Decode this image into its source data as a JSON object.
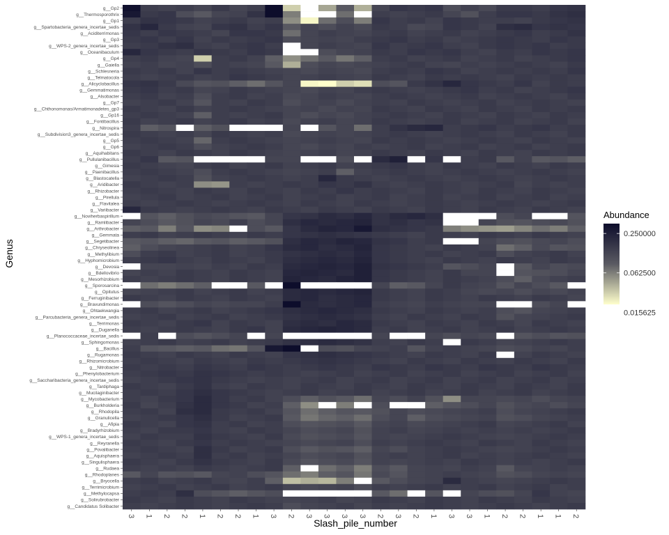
{
  "chart_data": {
    "type": "heatmap",
    "title": "",
    "xlabel": "Slash_pile_number",
    "ylabel": "Genus",
    "x_tick_labels": [
      "3",
      "1",
      "2",
      "2",
      "1",
      "2",
      "2",
      "1",
      "3",
      "2",
      "3",
      "3",
      "3",
      "3",
      "2",
      "3",
      "2",
      "1",
      "3",
      "3",
      "1",
      "2",
      "2",
      "1",
      "1",
      "2"
    ],
    "genera": [
      "g__Gp2",
      "g__Thermosporothrix",
      "g__Gp1",
      "g__Spartobacteria_genera_incertae_sedis",
      "g__Aciditerrimonas",
      "g__Gp3",
      "g__WPS-2_genera_incertae_sedis",
      "g__Oceanibaculum",
      "g__Gp4",
      "g__Gaiella",
      "g__Schlesneria",
      "g__Telmatocola",
      "g__Alicyclobacillus",
      "g__Gemmatimonas",
      "g__Alsobacter",
      "g__Gp7",
      "g__Chthonomonas/Armatimonadetes_gp3",
      "g__Gp16",
      "g__Fontibacillus",
      "g__Nitrospira",
      "g__Subdivision3_genera_incertae_sedis",
      "g__Gp5",
      "g__Gp6",
      "g__Aquihabitans",
      "g__Pullulanibacillus",
      "g__Gimesia",
      "g__Paenibacillus",
      "g__Blastocatella",
      "g__Aridibacter",
      "g__Rhizobacter",
      "g__Pirellula",
      "g__Flavitalea",
      "g__Variibacter",
      "g__Noviherbaspirillum",
      "g__Ramlibacter",
      "g__Arthrobacter",
      "g__Gemmata",
      "g__Segetibacter",
      "g__Chryseolinea",
      "g__Methylibium",
      "g__Hyphomicrobium",
      "g__Devosia",
      "g__Bdellovibrio",
      "g__Mesorhizobium",
      "g__Sporosarcina",
      "g__Opitutus",
      "g__Ferruginibacter",
      "g__Bravundimonas",
      "g__Ohtaekwangia",
      "g__Parcubacteria_genera_incertae_sedis",
      "g__Terrimonas",
      "g__Duganella",
      "g__Planococcaceae_incertae_sedis",
      "g__Sphingomonas",
      "g__Bacillus",
      "g__Rugamonas",
      "g__Rhizomicrobium",
      "g__Nitrobacter",
      "g__Phenylobacterium",
      "g__Saccharibacteria_genera_incertae_sedis",
      "g__Tardiphaga",
      "g__Mucilaginibacter",
      "g__Mycobacterium",
      "g__Burkholderia",
      "g__Rhodopila",
      "g__Granulicella",
      "g__Afipia",
      "g__Bradyrhizobium",
      "g__WPS-1_genera_incertae_sedis",
      "g__Reyranella",
      "g__Povalibacter",
      "g__Aquisphaera",
      "g__Singulisphaera",
      "g__Rudaea",
      "g__Rhodoplanes",
      "g__Bryocella",
      "g__Terrimicrobium",
      "g__Methylocapsa",
      "g__Solirubrobacter",
      "g__Candidatus Solibacter"
    ],
    "color_scale": {
      "name": "Abundance",
      "transform": "log2",
      "breaks": [
        0.25,
        0.0625,
        0.015625
      ],
      "break_labels": [
        "0.250000",
        "0.062500",
        "0.015625"
      ],
      "low_color": "#ffffcc",
      "mid_color": "#5a5a62",
      "high_color": "#0d0d2b",
      "zero_color": "#ffffff"
    },
    "grid": false,
    "legend_position": "right",
    "values_note_rows": "Approximate log2 abundance per genus (rows, top to bottom) and sample column (left to right); 'Z' means zero / below scale (white).",
    "values": [
      "-1.6,-2.8,-2.9,-2.8,-3.0,-2.7,-3.0,-2.8,-1.5,-5.0,Z,-4.5,-3.5,-4.6,-3.0,-2.6,-2.7,-2.6,-3.2,-2.9,-3.1,-2.7,-2.7,-2.8,-2.6,-2.5",
      "-1.8,-2.7,-2.6,-3.2,-3.5,-3.0,-2.9,-2.5,-1.0,-4.0,Z,Z,-3.8,Z,-2.8,-2.9,-2.8,-2.7,-3.0,-3.3,-2.8,-2.6,-2.6,-2.7,-2.5,-2.4",
      "-2.8,-2.5,-2.6,-2.7,-2.9,-2.8,-2.7,-2.9,-2.8,-4.2,-5.5,-3.8,-3.2,-4.0,-2.6,-2.8,-2.7,-2.9,-2.6,-2.7,-2.8,-2.8,-2.9,-2.7,-2.6,-2.5",
      "-2.5,-2.2,-2.7,-2.9,-3.0,-2.6,-2.5,-2.8,-2.6,-3.5,-3.0,-3.2,-2.9,-3.1,-2.7,-2.8,-3.1,-3.0,-2.6,-2.7,-2.9,-2.4,-2.3,-2.6,-2.5,-2.6",
      "-2.6,-2.8,-2.6,-2.7,-2.8,-3.0,-2.6,-2.6,-2.7,-3.8,-3.0,-2.8,-2.9,-3.0,-2.8,-2.7,-2.9,-2.8,-2.7,-2.9,-2.8,-2.7,-2.6,-2.8,-2.7,-2.5",
      "-2.7,-2.6,-2.8,-2.6,-2.9,-2.7,-2.8,-2.7,-2.6,-3.2,-3.0,-2.9,-3.0,-2.8,-2.7,-2.6,-2.8,-2.7,-2.9,-2.8,-2.7,-2.6,-2.7,-2.8,-2.6,-2.7",
      "-2.8,-2.7,-2.5,-2.4,-2.8,-2.9,-2.7,-2.6,-2.8,Z,-3.0,-2.8,-2.9,-3.0,-2.6,-2.8,-2.7,-2.6,-2.8,-2.9,-2.7,-2.6,-2.7,-2.6,-2.8,-2.7",
      "-2.2,-2.6,-2.7,-2.8,-2.6,-2.7,-2.8,-2.6,-2.7,Z,Z,-3.2,-3.0,-2.9,-2.7,-2.8,-2.6,-2.7,-2.6,-2.8,-2.9,-2.7,-2.8,-2.6,-2.7,-2.6",
      "-2.8,-2.7,-2.9,-3.0,-5.0,-2.8,-2.7,-2.9,-3.6,-4.2,-3.8,-3.5,-3.9,-3.6,-2.8,-2.7,-2.9,-2.8,-2.7,-2.9,-2.8,-2.7,-2.9,-2.8,-2.7,-2.6",
      "-2.9,-2.8,-3.0,-2.9,-3.2,-2.8,-2.9,-3.0,-3.5,-4.6,-3.2,-3.0,-3.1,-3.0,-2.9,-2.8,-2.7,-2.9,-3.0,-2.8,-2.9,-2.8,-2.7,-2.8,-2.9,-2.7",
      "-2.7,-2.8,-2.7,-2.9,-2.6,-2.8,-2.7,-2.8,-2.9,-3.0,-3.1,-2.9,-3.0,-3.1,-2.8,-2.7,-2.8,-2.6,-2.7,-2.9,-2.8,-2.7,-2.8,-2.7,-2.8,-2.6",
      "-2.8,-2.9,-2.8,-2.7,-2.9,-2.8,-2.6,-2.7,-2.8,-3.0,-2.9,-2.8,-2.9,-3.0,-2.7,-2.8,-2.9,-2.7,-2.8,-2.7,-2.8,-2.9,-2.7,-2.8,-2.7,-2.8",
      "-2.6,-2.5,-2.7,-3.1,-3.4,-3.3,-3.6,-3.8,-3.4,-3.0,-5.5,-5.6,-5.0,-5.2,-3.2,-3.4,-2.7,-2.5,-2.2,-2.6,-2.7,-2.8,-2.6,-2.9,-2.7,-2.8",
      "-2.7,-2.6,-2.8,-2.7,-3.0,-2.9,-2.7,-2.8,-2.9,-3.0,-3.1,-2.9,-3.0,-2.8,-2.7,-2.8,-2.9,-2.8,-2.7,-2.6,-2.8,-2.7,-2.9,-2.8,-2.7,-2.6",
      "-2.8,-2.7,-2.9,-2.8,-3.2,-2.8,-2.7,-2.9,-2.8,-3.1,-3.0,-2.8,-2.9,-3.0,-2.8,-2.7,-2.8,-2.9,-2.8,-2.7,-2.9,-2.8,-2.7,-2.8,-2.9,-2.7",
      "-2.9,-2.8,-2.7,-2.9,-3.4,-2.8,-2.9,-2.7,-2.8,-3.2,-3.0,-2.9,-3.1,-2.9,-2.8,-2.9,-2.7,-2.8,-2.9,-2.8,-2.7,-2.9,-2.8,-2.7,-2.8,-2.9",
      "-2.7,-2.8,-2.9,-2.7,-2.9,-2.8,-2.7,-2.8,-2.9,-3.0,-2.9,-3.1,-2.9,-3.0,-2.7,-2.8,-2.9,-2.7,-2.8,-2.9,-2.7,-2.8,-2.9,-2.7,-2.8,-2.7",
      "-2.8,-2.7,-2.8,-2.9,-3.6,-2.8,-2.9,-2.8,-2.7,-3.0,-3.2,-3.0,-3.1,-2.9,-2.8,-2.7,-2.8,-2.9,-2.7,-2.8,-2.9,-2.7,-2.8,-2.9,-2.7,-2.8",
      "-2.7,-2.9,-2.8,-2.7,-2.9,-2.8,-2.7,-2.9,-2.8,-3.1,-2.9,-2.8,-3.0,-2.9,-2.7,-2.8,-2.9,-2.8,-2.7,-2.9,-2.8,-2.7,-2.9,-2.8,-2.7,-2.9",
      "-2.8,-3.6,-3.4,Z,-3.6,-3.3,Z,Z,Z,-3.0,Z,-3.4,-3.0,-3.8,-2.8,-2.5,-2.3,-2.2,-2.8,-2.7,-2.6,-2.8,-2.7,-2.6,-2.8,-2.7",
      "-2.7,-2.8,-2.9,-2.8,-3.0,-2.7,-2.8,-2.9,-2.8,-3.1,-3.0,-2.9,-3.0,-2.9,-2.8,-2.7,-2.8,-2.9,-2.8,-2.7,-2.8,-2.9,-2.7,-2.8,-2.9,-2.7",
      "-2.8,-2.7,-2.8,-2.9,-3.7,-2.8,-2.7,-2.8,-2.9,-3.0,-2.9,-2.8,-2.9,-3.0,-2.7,-2.8,-2.7,-2.8,-2.9,-2.8,-2.7,-2.8,-2.9,-2.7,-2.8,-2.9",
      "-2.9,-2.8,-2.7,-2.8,-3.2,-2.9,-2.8,-2.7,-2.8,-3.0,-3.1,-2.9,-3.0,-2.8,-2.9,-2.8,-2.7,-2.9,-2.8,-2.7,-2.9,-2.8,-2.7,-2.9,-2.8,-2.7",
      "-2.7,-2.8,-2.9,-2.7,-2.8,-2.9,-2.7,-2.8,-2.9,-3.0,-2.9,-2.8,-3.0,-2.9,-2.7,-2.8,-2.9,-2.7,-2.8,-2.9,-2.7,-2.8,-2.9,-2.7,-2.8,-2.7",
      "-2.8,-2.6,-3.5,-3.4,Z,Z,Z,Z,-3.0,-3.0,Z,Z,-3.2,Z,-2.3,-2.0,Z,-2.6,Z,-2.8,-2.7,-3.5,-2.9,-3.5,-3.4,-3.6",
      "-2.7,-2.8,-2.9,-3.0,-2.8,-2.7,-2.9,-2.8,-2.7,-2.9,-2.8,-2.7,-2.9,-2.8,-2.7,-2.6,-2.8,-2.9,-2.7,-2.8,-2.9,-2.7,-2.8,-2.9,-2.7,-2.8",
      "-2.8,-2.7,-2.8,-2.9,-3.2,-2.8,-2.7,-2.8,-2.9,-3.0,-2.9,-2.8,-3.6,-2.9,-2.8,-2.7,-2.8,-2.9,-2.8,-2.7,-2.8,-2.9,-2.8,-2.7,-2.8,-2.9",
      "-2.9,-2.8,-2.7,-2.8,-3.3,-2.9,-2.8,-2.7,-2.8,-2.9,-2.8,-2.2,-2.7,-2.8,-2.9,-2.8,-2.7,-2.8,-2.9,-2.8,-2.7,-2.8,-2.9,-2.8,-2.7,-2.8",
      "-2.7,-2.8,-2.9,-2.8,-4.2,-4.3,-2.8,-2.9,-2.8,-2.7,-2.8,-2.6,-2.7,-2.5,-2.8,-2.9,-2.8,-2.7,-2.8,-2.9,-2.8,-2.7,-3.0,-2.8,-2.9,-2.8",
      "-2.8,-2.7,-2.8,-2.9,-2.7,-2.8,-2.9,-2.7,-2.8,-2.9,-2.7,-2.8,-2.6,-2.8,-2.7,-2.8,-2.9,-2.7,-2.8,-2.9,-2.7,-2.8,-2.9,-2.7,-2.8,-2.9",
      "-2.9,-2.8,-2.7,-2.9,-2.8,-2.7,-2.9,-2.8,-2.7,-2.9,-2.8,-2.7,-2.9,-2.8,-2.7,-2.9,-2.8,-2.7,-2.9,-2.8,-2.7,-2.9,-2.8,-2.7,-2.9,-2.8",
      "-2.8,-2.9,-2.8,-2.7,-2.8,-2.9,-2.8,-2.7,-2.8,-2.9,-2.7,-2.8,-2.9,-2.7,-2.8,-2.9,-2.8,-2.7,-2.8,-2.9,-2.8,-2.7,-2.8,-2.9,-2.8,-2.7",
      "-2.2,-2.7,-2.8,-2.9,-2.8,-2.7,-2.8,-2.9,-2.7,-2.8,-2.9,-2.7,-2.8,-2.9,-2.7,-2.8,-2.9,-2.7,-2.8,-2.9,-2.7,-2.8,-2.9,-2.7,-2.8,-2.9",
      "Z,-3.4,-3.6,-3.3,-3.1,-3.2,-3.4,-3.5,-3.0,-2.6,-2.5,-2.3,-2.4,-2.2,-2.5,-2.3,-2.2,-2.4,Z,Z,Z,-3.2,-3.0,Z,Z,-3.4",
      "-3.0,-3.2,-3.5,-3.3,-3.0,-3.1,-2.8,-3.2,-3.0,-2.4,-2.2,-2.3,-2.2,-2.1,-2.5,-2.4,-2.6,-2.5,Z,Z,-3.0,-3.3,-3.4,-3.2,-3.1,-3.3",
      "-3.6,-3.5,-4.0,-3.4,-4.2,-4.1,Z,-3.2,-3.5,-2.6,-2.3,-2.1,-2.2,-1.8,-2.4,-2.5,-2.6,-2.7,-4.0,-4.2,-4.3,-4.4,-4.1,-3.8,-4.0,-3.6",
      "-2.8,-2.7,-2.9,-2.8,-2.7,-2.8,-2.9,-2.7,-2.8,-2.6,-2.5,-2.4,-2.5,-2.6,-2.7,-2.8,-2.9,-2.7,-2.8,-2.9,-2.7,-2.8,-2.9,-2.7,-2.8,-2.9",
      "-3.5,-3.4,-3.6,-3.7,-3.5,-3.4,-3.6,-3.5,-3.3,-2.4,-2.2,-2.3,-2.1,-2.2,-2.5,-2.6,-2.8,-2.7,Z,Z,-3.0,-3.2,-3.3,-3.1,-3.0,-3.2",
      "-3.6,-3.2,-3.0,-2.9,-2.8,-2.7,-2.9,-2.8,-2.6,-2.3,-2.2,-2.4,-2.3,-2.1,-2.6,-2.7,-2.8,-2.9,-2.7,-2.8,-2.9,-3.8,-3.6,-3.1,-3.4,-3.3",
      "-3.2,-2.8,-2.7,-2.9,-2.8,-2.7,-2.9,-2.8,-2.7,-2.5,-2.4,-2.3,-2.4,-2.2,-2.6,-2.7,-2.8,-2.7,-2.9,-2.8,-2.7,-3.2,-2.9,-2.8,-2.7,-2.9",
      "-2.8,-2.7,-2.6,-2.8,-2.9,-2.7,-2.8,-2.9,-2.7,-2.4,-2.3,-2.2,-2.3,-2.1,-2.6,-2.7,-2.8,-2.9,-2.7,-2.8,-2.9,-2.7,-2.8,-2.9,-2.7,-2.8",
      "Z,-3.0,-3.0,-2.9,-3.0,-2.8,-2.9,-2.7,-2.8,-2.3,-2.2,-2.1,-2.2,-2.0,-2.5,-2.6,-2.7,-2.8,-3.4,-3.2,-3.0,Z,-3.5,-3.0,-3.2,-3.1",
      "-3.0,-2.8,-2.9,-2.7,-2.8,-2.9,-2.7,-2.8,-2.9,-2.2,-2.1,-2.2,-2.3,-2.0,-2.6,-2.7,-2.8,-2.9,-2.7,-3.0,-3.0,Z,-3.4,-3.3,-3.2,-3.0",
      "-2.8,-2.9,-2.8,-2.7,-2.8,-2.9,-2.7,-2.8,-2.9,-2.1,-2.2,-2.3,-2.1,-2.0,-2.6,-2.7,-2.8,-2.9,-2.7,-2.8,-2.9,-3.2,-3.6,-3.1,-2.9,-2.8",
      "Z,-3.8,-4.0,-3.8,-3.6,Z,Z,-3.5,Z,-1.5,Z,Z,Z,Z,-3.0,-3.6,-3.5,-3.0,-2.7,-2.9,-3.0,-3.4,-3.0,-3.2,-3.5,Z",
      "-3.0,-2.9,-2.8,-2.7,-2.9,-2.8,-2.7,-2.9,-2.8,-2.3,-2.2,-2.3,-2.2,-2.1,-2.7,-2.8,-2.9,-2.7,-2.8,-3.0,-3.1,-3.0,-3.2,-3.0,-3.1,-2.9",
      "-2.7,-2.8,-2.9,-2.7,-2.8,-2.9,-2.7,-2.8,-2.9,-2.3,-2.2,-2.4,-2.3,-2.2,-2.7,-2.8,-2.9,-2.7,-2.8,-2.9,-2.7,-2.8,-2.9,-2.7,-2.8,-3.0",
      "Z,-3.2,-3.4,-3.2,-3.0,-3.1,-3.0,-3.0,-2.8,-1.5,-2.3,-2.4,-2.3,-2.2,-2.8,-2.9,-3.0,-2.8,-2.9,-3.0,-3.0,Z,Z,-3.2,-3.0,Z",
      "-2.8,-2.7,-2.9,-2.8,-2.7,-2.9,-2.8,-2.7,-2.6,-2.4,-2.3,-2.2,-2.3,-2.4,-2.7,-2.8,-2.9,-2.7,-2.8,-2.9,-2.8,-3.2,-3.4,-3.0,-2.9,-2.8",
      "-2.9,-2.8,-2.7,-2.9,-2.8,-2.7,-2.9,-2.8,-2.7,-2.5,-2.4,-2.3,-2.4,-2.5,-2.8,-2.9,-2.7,-2.8,-2.9,-2.7,-2.8,-3.3,-3.0,-2.9,-2.8,-2.7",
      "-2.7,-2.8,-2.9,-2.7,-2.6,-2.9,-2.7,-2.8,-2.9,-2.4,-2.3,-2.4,-2.2,-2.3,-2.7,-2.8,-2.9,-2.7,-2.8,-2.9,-2.7,-2.8,-3.0,-2.7,-2.8,-2.9",
      "-2.8,-2.9,-2.8,-2.7,-2.8,-2.9,-2.7,-2.6,-2.9,-2.3,-2.2,-2.1,-2.2,-2.3,-2.8,-2.7,-2.9,-2.8,-2.7,-2.9,-2.8,-2.7,-2.9,-2.8,-2.7,-2.8",
      "Z,-2.8,Z,-3.2,-3.4,-3.2,-3.0,Z,-3.0,Z,Z,Z,Z,Z,-3.0,Z,Z,-3.0,-3.2,-3.0,-3.1,Z,-3.4,-3.2,-3.4,-3.3",
      "-2.9,-2.8,-2.7,-2.9,-2.8,-2.7,-2.9,-2.8,-2.7,-2.5,-2.4,-2.3,-2.4,-2.5,-2.8,-2.9,-2.7,-2.8,Z,-2.7,-2.8,-3.0,-2.9,-2.8,-2.7,-2.8",
      "-2.8,-3.4,-3.5,-3.6,-3.5,-3.8,-3.9,-3.4,-1.8,-1.5,Z,-3.2,-3.3,-3.0,-2.9,-2.8,-3.4,-2.9,-2.8,-2.9,-3.0,-3.2,-3.1,-2.9,-3.0,-2.8",
      "-2.7,-2.8,-2.9,-2.7,-2.8,-2.9,-2.7,-2.8,-2.9,-2.6,-2.5,-2.4,-2.5,-2.6,-2.7,-2.8,-2.9,-2.7,-2.8,-2.9,-2.7,Z,-2.9,-2.7,-2.8,-2.9",
      "-2.8,-2.7,-2.8,-2.9,-2.7,-2.8,-2.9,-2.7,-2.8,-2.7,-2.6,-2.5,-2.6,-2.7,-2.8,-2.9,-2.7,-2.8,-2.9,-2.7,-2.8,-2.9,-2.7,-2.8,-2.9,-2.7",
      "-2.7,-2.8,-2.7,-2.8,-2.6,-2.7,-2.8,-2.6,-2.7,-2.8,-2.7,-2.6,-2.7,-2.8,-2.6,-2.7,-2.8,-2.6,-2.7,-2.8,-2.6,-2.7,-2.8,-2.6,-2.7,-2.8",
      "-2.8,-2.7,-2.6,-2.7,-2.5,-2.6,-2.7,-2.8,-2.7,-2.8,-2.9,-2.8,-2.7,-2.9,-2.8,-2.7,-2.9,-2.8,-2.7,-2.9,-2.8,-2.7,-2.9,-2.8,-2.7,-2.9",
      "-2.9,-2.8,-2.7,-2.6,-2.5,-2.7,-2.8,-2.9,-2.8,-2.9,-2.8,-2.7,-2.9,-2.8,-2.7,-2.9,-2.8,-2.7,-2.9,-2.8,-2.7,-2.9,-2.8,-2.7,-2.9,-2.8",
      "-2.7,-2.8,-2.9,-2.7,-2.5,-2.8,-2.9,-2.7,-2.8,-2.9,-2.7,-2.8,-2.9,-2.7,-2.8,-2.9,-2.7,-2.8,-2.9,-2.7,-2.8,-2.9,-2.7,-2.8,-2.9,-2.7",
      "-2.8,-2.7,-2.8,-2.6,-2.4,-2.6,-2.7,-2.8,-2.9,-2.8,-2.7,-2.9,-2.8,-2.7,-2.9,-2.8,-2.7,-2.9,-2.8,-2.7,-2.9,-2.8,-2.7,-2.9,-2.8,-2.7",
      "-2.8,-2.9,-2.7,-2.6,-2.3,-2.6,-2.8,-2.7,-2.9,-3.2,-3.6,-3.3,-3.5,-3.8,-3.0,-3.2,-2.9,-3.3,-4.2,-3.0,-3.0,-3.1,-3.0,-3.2,-3.0,-2.9",
      "-2.7,-3.0,-2.8,-2.5,-2.3,-2.6,-2.7,-2.9,-2.8,-3.6,-4.2,Z,-4.0,Z,-3.2,Z,Z,-3.6,-3.4,-3.2,-3.0,-3.3,-3.1,-3.0,-3.2,-3.0",
      "-2.8,-2.7,-2.9,-2.4,-2.3,-2.7,-2.8,-2.7,-2.9,-3.4,-3.8,-3.6,-3.4,-3.5,-3.3,-3.0,-3.2,-3.1,-3.0,-2.9,-2.8,-3.2,-3.0,-2.9,-2.8,-2.7",
      "-2.9,-2.8,-2.7,-2.6,-2.4,-2.7,-2.9,-2.8,-2.7,-3.5,-3.9,-3.7,-3.6,-3.8,-3.2,-3.0,-3.6,-3.2,-3.1,-3.0,-2.9,-3.3,-3.2,-3.0,-2.9,-2.8",
      "-2.7,-2.8,-2.9,-2.6,-2.5,-2.8,-2.7,-2.9,-2.8,-3.2,-3.4,-3.3,-3.2,-3.5,-3.0,-2.9,-3.1,-3.0,-2.9,-2.8,-2.7,-3.0,-2.9,-2.8,-2.7,-2.9",
      "-2.8,-2.9,-2.7,-2.7,-2.6,-2.8,-2.9,-2.7,-2.8,-3.0,-3.2,-3.1,-3.0,-3.3,-2.9,-2.8,-3.0,-2.9,-2.8,-2.9,-2.8,-2.9,-2.8,-2.9,-2.8,-2.7",
      "-2.9,-2.7,-2.8,-2.8,-2.5,-2.7,-2.8,-2.9,-2.7,-3.1,-3.3,-3.2,-3.1,-3.4,-2.9,-3.0,-2.9,-2.8,-2.7,-2.8,-2.9,-3.0,-2.9,-2.8,-2.7,-2.8",
      "-2.7,-2.8,-2.9,-2.7,-2.6,-2.8,-2.7,-2.8,-2.9,-3.0,-3.1,-3.0,-2.9,-3.2,-2.8,-2.9,-2.8,-2.7,-2.8,-2.9,-2.7,-2.8,-2.9,-2.7,-2.8,-2.9",
      "-2.8,-2.7,-2.8,-2.9,-2.4,-2.7,-2.9,-2.8,-2.7,-3.2,-3.5,-3.3,-3.4,-3.6,-3.0,-3.2,-2.9,-2.8,-2.7,-2.8,-2.9,-3.0,-2.9,-2.8,-2.7,-2.8",
      "-2.9,-2.8,-2.7,-2.8,-2.4,-2.8,-2.7,-2.9,-2.8,-3.0,-3.2,-3.1,-3.0,-3.3,-2.9,-2.8,-2.9,-2.8,-2.7,-2.9,-2.8,-2.9,-2.8,-2.7,-2.8,-2.9",
      "-2.7,-2.8,-2.9,-2.7,-2.5,-2.7,-2.8,-2.9,-2.7,-3.1,-3.4,-3.2,-3.1,-3.4,-2.9,-3.0,-2.9,-2.8,-2.9,-2.7,-2.8,-2.9,-2.8,-2.9,-2.8,-2.7",
      "-2.8,-2.9,-2.8,-2.9,-2.7,-2.8,-2.9,-2.8,-2.7,-3.6,Z,-3.8,-3.6,-4.0,-3.2,-3.5,-3.0,-2.9,-3.0,-2.8,-2.9,-3.5,-3.0,-2.9,-2.8,-2.9",
      "-3.5,-3.0,-3.4,-3.3,-3.5,-3.0,-2.9,-3.2,-3.4,-3.8,-4.0,-3.6,-3.4,-3.9,-3.1,-3.4,-3.0,-2.9,-2.8,-2.9,-3.0,-3.3,-3.2,-3.0,-2.9,-3.0",
      "-2.8,-2.7,-2.9,-2.8,-2.7,-2.9,-3.0,-2.8,-3.6,-4.8,-4.6,-4.7,-4.0,Z,-3.5,-3.2,-3.0,-2.9,-2.3,-2.8,-2.9,-3.0,-2.9,-2.8,-2.7,-2.8",
      "-2.9,-2.8,-2.7,-2.9,-2.8,-2.7,-2.9,-2.8,-2.7,-3.0,-3.1,-3.0,-2.9,-3.2,-2.8,-2.9,-2.8,-2.7,-2.9,-2.8,-2.7,-2.9,-2.8,-2.7,-2.9,-2.8",
      "-2.8,-2.7,-2.8,-2.4,-3.2,-3.4,-3.6,-3.4,-3.2,Z,Z,Z,Z,Z,-3.5,-3.8,Z,-3.4,Z,-3.0,-3.2,-3.3,-3.0,-2.6,-2.9,-3.0",
      "-2.7,-2.8,-2.9,-2.7,-2.8,-2.9,-2.7,-2.8,-2.9,-3.0,-2.9,-2.8,-3.0,-2.9,-2.7,-2.8,-2.9,-2.7,-2.8,-2.9,-2.7,-2.8,-2.9,-2.7,-2.8,-2.9",
      "-2.8,-2.9,-2.8,-2.7,-2.8,-2.9,-2.8,-2.7,-2.8,-3.2,-3.0,-2.9,-2.8,-3.0,-2.8,-2.9,-2.8,-2.7,-2.8,-2.9,-2.8,-2.7,-2.8,-2.9,-2.8,-2.7"
    ]
  }
}
